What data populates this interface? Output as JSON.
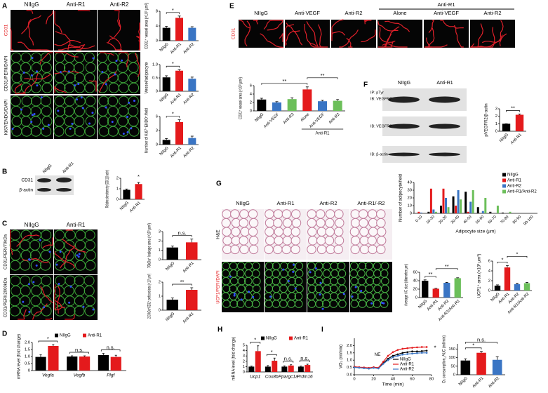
{
  "panels": {
    "letters": [
      "A",
      "B",
      "C",
      "D",
      "E",
      "F",
      "G",
      "H",
      "I"
    ],
    "A": {
      "columns": [
        "NIIgG",
        "Anti-R1",
        "Anti-R2"
      ],
      "rows": [
        "CD31",
        "CD31/PERI/DAPI",
        "Ki67/ENDO/DAPI"
      ]
    },
    "B": {
      "columns": [
        "NIIgG",
        "Anti-R1"
      ],
      "rows": [
        "CD31",
        "β-actin"
      ]
    },
    "C": {
      "columns": [
        "NIIgG",
        "Anti-R1"
      ],
      "rows": [
        "CD31/PERI/70kDa",
        "CD31/PERI/2000kDa"
      ]
    },
    "E": {
      "columns": [
        "NIIgG",
        "Anti-VEGF",
        "Anti-R2",
        "Alone",
        "Anti-VEGF",
        "Anti-R2"
      ],
      "group": "Anti-R1",
      "rows": [
        "CD31"
      ]
    },
    "F": {
      "columns": [
        "NIIgG",
        "Anti-R1"
      ],
      "rows": [
        "IP: pTyr",
        "IB: VEGFR2",
        "IB: VEGFR2",
        "IB: β-actin"
      ]
    },
    "G": {
      "columns": [
        "NIIgG",
        "Anti-R1",
        "Anti-R2",
        "Anti-R1/-R2"
      ],
      "rows": [
        "H&E",
        "UCP1/PERI/DAPI"
      ]
    }
  },
  "chart_data": [
    {
      "type": "bar",
      "ylabel": "CD31⁺ vessel area (×10³ µm²)",
      "categories": [
        "NIIgG",
        "Anti-R1",
        "Anti-R2"
      ],
      "values": [
        3.5,
        6.2,
        3.5
      ],
      "errors": [
        0.4,
        0.5,
        0.3
      ],
      "colors": [
        "#000000",
        "#e41a1c",
        "#3a75c4"
      ],
      "ylim": [
        0,
        8
      ],
      "yticks": [
        0,
        4,
        8
      ],
      "significance": [
        "*"
      ]
    },
    {
      "type": "bar",
      "ylabel": "Vessel/adipocyte",
      "categories": [
        "NIIgG",
        "Anti-R1",
        "Anti-R2"
      ],
      "values": [
        0.52,
        0.77,
        0.47
      ],
      "errors": [
        0.06,
        0.04,
        0.06
      ],
      "colors": [
        "#000000",
        "#e41a1c",
        "#3a75c4"
      ],
      "ylim": [
        0,
        1
      ],
      "yticks": [
        0,
        0.5,
        {
          "value": 1,
          "label": "1.0"
        }
      ],
      "significance": [
        "*"
      ]
    },
    {
      "type": "bar",
      "ylabel": "Number of Ki67⁺ENDO⁺/field",
      "categories": [
        "NIIgG",
        "Anti-R1",
        "Anti-R2"
      ],
      "values": [
        1,
        4.8,
        1.4
      ],
      "errors": [
        0.3,
        0.5,
        0.4
      ],
      "colors": [
        "#000000",
        "#e41a1c",
        "#3a75c4"
      ],
      "ylim": [
        0,
        6
      ],
      "yticks": [
        0,
        3,
        6
      ],
      "significance": [
        "*"
      ]
    },
    {
      "type": "bar",
      "ylabel": "Relative densitometry (CD31/β-actin)",
      "categories": [
        "NIIgG",
        "Anti-R1"
      ],
      "values": [
        0.9,
        1.45
      ],
      "errors": [
        0.08,
        0.15
      ],
      "colors": [
        "#000000",
        "#e41a1c"
      ],
      "ylim": [
        0,
        2
      ],
      "yticks": [
        0,
        1,
        2
      ],
      "significance": [
        "*"
      ]
    },
    {
      "type": "bar",
      "ylabel": "70kDa⁺ leakage area (×10³ µm²)",
      "categories": [
        "NIIgG",
        "Anti-R1"
      ],
      "values": [
        1.3,
        1.85
      ],
      "errors": [
        0.15,
        0.35
      ],
      "colors": [
        "#000000",
        "#e41a1c"
      ],
      "ylim": [
        0,
        3
      ],
      "yticks": [
        0,
        1,
        2,
        3
      ],
      "significance": [
        "n.s."
      ]
    },
    {
      "type": "bar",
      "ylabel": "2000kDa⁺CD31⁺ perfused area (×10³ µm²)",
      "categories": [
        "NIIgG",
        "Anti-R1"
      ],
      "values": [
        0.75,
        1.45
      ],
      "errors": [
        0.12,
        0.15
      ],
      "colors": [
        "#000000",
        "#e41a1c"
      ],
      "ylim": [
        0,
        2
      ],
      "yticks": [
        0,
        1,
        2
      ],
      "significance": [
        "**"
      ]
    },
    {
      "type": "grouped_bar",
      "ylabel": "mRNA level (fold change)",
      "categories": [
        "Vegfa",
        "Vegfb",
        "Plgf"
      ],
      "series": [
        {
          "name": "NIIgG",
          "color": "#000000",
          "values": [
            0.97,
            1.0,
            1.1
          ],
          "errors": [
            0.15,
            0.05,
            0.12
          ]
        },
        {
          "name": "Anti-R1",
          "color": "#e41a1c",
          "values": [
            1.75,
            1.0,
            0.97
          ],
          "errors": [
            0.1,
            0.05,
            0.12
          ]
        }
      ],
      "ylim": [
        0,
        2
      ],
      "yticks": [
        0,
        0.5,
        {
          "value": 1,
          "label": "1.0"
        },
        1.5,
        {
          "value": 2,
          "label": "2.0"
        }
      ],
      "significance": [
        "*",
        "n.s.",
        "n.s."
      ]
    },
    {
      "type": "bar",
      "ylabel": "CD31⁺ vessel area (×10³ µm²)",
      "categories": [
        "NIIgG",
        "Anti-VEGF",
        "Anti-R2",
        "Alone",
        "Anti-VEGF",
        "Anti-R2"
      ],
      "group_label": "Anti-R1",
      "values": [
        2.7,
        2.0,
        2.8,
        5.1,
        2.3,
        2.4
      ],
      "errors": [
        0.3,
        0.2,
        0.3,
        0.6,
        0.2,
        0.3
      ],
      "colors": [
        "#000000",
        "#3a75c4",
        "#6cbf5a",
        "#e41a1c",
        "#3a75c4",
        "#6cbf5a"
      ],
      "ylim": [
        0,
        6
      ],
      "yticks": [
        0,
        2,
        4,
        6
      ],
      "significance": [
        "**",
        "**"
      ]
    },
    {
      "type": "bar",
      "ylabel": "pVEGFR2/β-actin",
      "categories": [
        "NIIgG",
        "Anti-R1"
      ],
      "values": [
        1,
        2.2
      ],
      "errors": [
        0,
        0.1
      ],
      "colors": [
        "#000000",
        "#e41a1c"
      ],
      "ylim": [
        0,
        3
      ],
      "yticks": [
        0,
        1,
        2,
        3
      ],
      "significance": [
        "**"
      ]
    },
    {
      "type": "grouped_bar",
      "ylabel": "Number of adipocyte/field",
      "xlabel": "Adipocyte size (µm)",
      "categories": [
        "0-10",
        "10-20",
        "20-30",
        "30-40",
        "40-50",
        "50-60",
        "60-70",
        "70-80",
        "80-90",
        "90-100"
      ],
      "series": [
        {
          "name": "NIIgG",
          "color": "#000000",
          "values": [
            0,
            2,
            10,
            22,
            28,
            8,
            2,
            1,
            0,
            0
          ]
        },
        {
          "name": "Anti-R1",
          "color": "#e41a1c",
          "values": [
            2,
            32,
            32,
            10,
            2,
            0,
            0,
            0,
            0,
            0
          ]
        },
        {
          "name": "Anti-R2",
          "color": "#3a75c4",
          "values": [
            1,
            5,
            20,
            30,
            15,
            3,
            0,
            0,
            0,
            0
          ]
        },
        {
          "name": "Anti-R1/Anti-R2",
          "color": "#6cbf5a",
          "values": [
            0,
            2,
            8,
            18,
            30,
            20,
            10,
            2,
            0,
            0
          ]
        }
      ],
      "ylim": [
        0,
        40
      ],
      "yticks": [
        0,
        10,
        20,
        30,
        40
      ]
    },
    {
      "type": "bar",
      "ylabel": "Average AC size (diameter µm)",
      "categories": [
        "NIIgG",
        "Anti-R1",
        "Anti-R2",
        "Anti-R1/Anti-R2"
      ],
      "values": [
        40,
        21,
        35,
        46
      ],
      "errors": [
        2,
        1,
        1,
        1
      ],
      "colors": [
        "#000000",
        "#e41a1c",
        "#3a75c4",
        "#6cbf5a"
      ],
      "ylim": [
        0,
        60
      ],
      "yticks": [
        0,
        20,
        40,
        60
      ],
      "significance": [
        "**",
        "**"
      ]
    },
    {
      "type": "bar",
      "ylabel": "UCP1⁺ area (×10³ µm²)",
      "categories": [
        "NIIgG",
        "Anti-R1",
        "Anti-R2",
        "Anti-R1/Anti-R2"
      ],
      "values": [
        1,
        4.7,
        1.3,
        1.5
      ],
      "errors": [
        0.15,
        0.4,
        0.2,
        0.15
      ],
      "colors": [
        "#000000",
        "#e41a1c",
        "#3a75c4",
        "#6cbf5a"
      ],
      "ylim": [
        0,
        6
      ],
      "yticks": [
        0,
        2,
        4,
        6
      ],
      "significance": [
        "*",
        "*"
      ]
    },
    {
      "type": "grouped_bar",
      "ylabel": "mRNA level (fold change)",
      "categories": [
        "Ucp1",
        "Cox8b",
        "Ppargc1a",
        "Prdm16"
      ],
      "series": [
        {
          "name": "NIIgG",
          "color": "#000000",
          "values": [
            1,
            1,
            1,
            1
          ],
          "errors": [
            0.1,
            0.2,
            0.15,
            0.1
          ]
        },
        {
          "name": "Anti-R1",
          "color": "#e41a1c",
          "values": [
            3.9,
            2.1,
            1.2,
            1.3
          ],
          "errors": [
            1,
            0.5,
            0.15,
            0.15
          ]
        }
      ],
      "ylim": [
        0,
        5
      ],
      "yticks": [
        0,
        1,
        2,
        3,
        4,
        5
      ],
      "significance": [
        "*",
        "*",
        "n.s.",
        "n.s."
      ]
    },
    {
      "type": "line",
      "ylabel": "VO₂ (ml/min)",
      "xlabel": "Time (min)",
      "annotations": [
        "NE",
        "*"
      ],
      "x": [
        0,
        5,
        10,
        15,
        20,
        25,
        30,
        35,
        40,
        45,
        50,
        55,
        60,
        65,
        70,
        75
      ],
      "series": [
        {
          "name": "NIIgG",
          "color": "#000000",
          "values": [
            0.55,
            0.5,
            0.48,
            0.45,
            0.5,
            0.45,
            0.8,
            1.1,
            1.3,
            1.4,
            1.5,
            1.55,
            1.6,
            1.6,
            1.62,
            1.65
          ]
        },
        {
          "name": "Anti-R1",
          "color": "#e41a1c",
          "values": [
            0.55,
            0.52,
            0.5,
            0.47,
            0.52,
            0.48,
            0.9,
            1.3,
            1.55,
            1.7,
            1.78,
            1.82,
            1.85,
            1.88,
            1.9,
            1.9
          ]
        },
        {
          "name": "Anti-R2",
          "color": "#3a75c4",
          "values": [
            0.5,
            0.48,
            0.45,
            0.42,
            0.47,
            0.43,
            0.75,
            1.0,
            1.2,
            1.3,
            1.38,
            1.42,
            1.45,
            1.48,
            1.5,
            1.5
          ]
        }
      ],
      "xlim": [
        0,
        80
      ],
      "xticks": [
        0,
        20,
        40,
        60,
        80
      ],
      "ylim": [
        0,
        2.5
      ],
      "yticks": [
        {
          "value": 0,
          "label": "0.0"
        },
        0.5,
        {
          "value": 1,
          "label": "1.0"
        },
        1.5,
        {
          "value": 2,
          "label": "2.0"
        }
      ]
    },
    {
      "type": "bar",
      "ylabel": "O₂ consumption_AUC (ml/min)",
      "categories": [
        "NIIgG",
        "Anti-R1",
        "Anti-R2"
      ],
      "values": [
        83,
        128,
        87
      ],
      "errors": [
        10,
        8,
        18
      ],
      "colors": [
        "#000000",
        "#e41a1c",
        "#3a75c4"
      ],
      "ylim": [
        0,
        180
      ],
      "yticks": [
        0,
        50,
        100,
        150
      ],
      "significance": [
        "*",
        "n.s."
      ]
    }
  ]
}
